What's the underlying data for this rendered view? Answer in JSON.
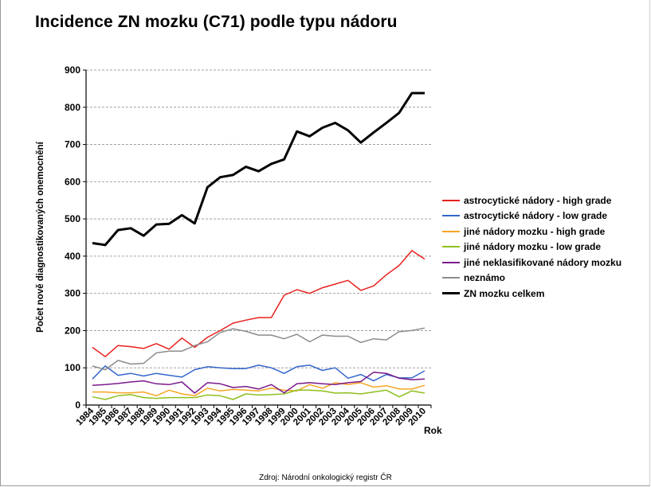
{
  "title": "Incidence ZN mozku (C71) podle typu nádoru",
  "source": "Zdroj: Národní onkologický registr ČR",
  "chart_data": {
    "type": "line",
    "title": "Incidence ZN mozku (C71) podle typu nádoru",
    "ylabel": "Počet nově diagnostikovaných onemocnění",
    "xlabel": "Rok",
    "ylim": [
      0,
      900
    ],
    "yticks": [
      "0",
      "100",
      "200",
      "300",
      "400",
      "500",
      "600",
      "700",
      "800",
      "900"
    ],
    "grid": true,
    "legend_position": "right",
    "categories": [
      "1984",
      "1985",
      "1986",
      "1987",
      "1988",
      "1989",
      "1990",
      "1991",
      "1992",
      "1993",
      "1994",
      "1995",
      "1996",
      "1997",
      "1998",
      "1999",
      "2000",
      "2001",
      "2002",
      "2003",
      "2004",
      "2005",
      "2006",
      "2007",
      "2008",
      "2009",
      "2010"
    ],
    "series": [
      {
        "name": "astrocytické nádory - high grade",
        "color": "#e8211d",
        "width": 1.5,
        "values": [
          155,
          130,
          160,
          157,
          152,
          165,
          150,
          180,
          155,
          182,
          200,
          220,
          228,
          235,
          235,
          295,
          310,
          300,
          315,
          325,
          335,
          308,
          320,
          350,
          375,
          415,
          392
        ]
      },
      {
        "name": "astrocytické nádory - low grade",
        "color": "#3366cc",
        "width": 1.5,
        "values": [
          70,
          105,
          80,
          85,
          78,
          85,
          80,
          75,
          95,
          103,
          100,
          98,
          98,
          107,
          100,
          85,
          103,
          107,
          93,
          100,
          72,
          82,
          65,
          82,
          73,
          73,
          92
        ]
      },
      {
        "name": "jiné nádory mozku - high grade",
        "color": "#f5a623",
        "width": 1.5,
        "values": [
          35,
          35,
          33,
          33,
          35,
          25,
          40,
          30,
          25,
          45,
          38,
          42,
          40,
          38,
          45,
          40,
          38,
          55,
          45,
          60,
          55,
          60,
          48,
          52,
          43,
          43,
          53
        ]
      },
      {
        "name": "jiné nádory mozku - low grade",
        "color": "#8fbf1f",
        "width": 1.5,
        "values": [
          22,
          15,
          25,
          28,
          20,
          18,
          20,
          20,
          20,
          27,
          25,
          15,
          30,
          27,
          28,
          30,
          40,
          40,
          38,
          32,
          33,
          30,
          35,
          40,
          22,
          38,
          32
        ]
      },
      {
        "name": "jiné neklasifikované nádory mozku",
        "color": "#7a1a8c",
        "width": 1.5,
        "values": [
          53,
          55,
          58,
          62,
          65,
          57,
          55,
          62,
          32,
          60,
          57,
          47,
          50,
          43,
          55,
          33,
          57,
          60,
          57,
          55,
          60,
          63,
          88,
          85,
          72,
          68,
          70
        ]
      },
      {
        "name": "neznámo",
        "color": "#8c8c8c",
        "width": 1.5,
        "values": [
          105,
          95,
          120,
          110,
          112,
          140,
          145,
          145,
          160,
          170,
          195,
          205,
          198,
          188,
          188,
          178,
          190,
          170,
          188,
          185,
          185,
          168,
          178,
          175,
          197,
          200,
          207
        ]
      },
      {
        "name": "ZN mozku celkem",
        "color": "#000000",
        "width": 3,
        "values": [
          435,
          430,
          470,
          475,
          455,
          485,
          487,
          510,
          488,
          585,
          612,
          618,
          640,
          628,
          648,
          660,
          735,
          722,
          745,
          758,
          738,
          705,
          732,
          758,
          785,
          838,
          838
        ]
      }
    ]
  }
}
